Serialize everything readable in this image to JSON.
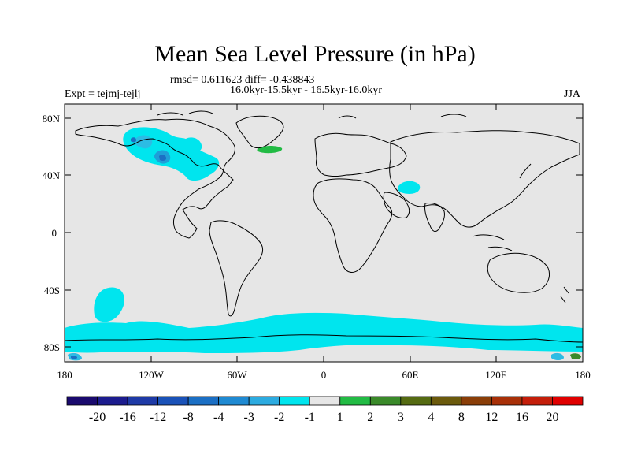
{
  "title": "Mean Sea Level Pressure (in hPa)",
  "stats": "rmsd= 0.611623 diff= -0.438843",
  "period": "16.0kyr-15.5kyr - 16.5kyr-16.0kyr",
  "experiment": "Expt = tejmj-tejlj",
  "season": "JJA",
  "colors": {
    "background": "#e6e6e6",
    "neg1": "#00e5ee",
    "neg2": "#2cbce4",
    "neg3": "#1f9fd8",
    "neg4": "#1b6fc4",
    "pos1": "#22bb44",
    "pos2": "#3a8a2a"
  },
  "map": {
    "lat_labels": [
      "80N",
      "40N",
      "0",
      "40S",
      "80S"
    ],
    "lon_labels": [
      "180",
      "120W",
      "60W",
      "0",
      "60E",
      "120E",
      "180"
    ]
  },
  "colorbar": {
    "labels": [
      "-20",
      "-16",
      "-12",
      "-8",
      "-4",
      "-3",
      "-2",
      "-1",
      "1",
      "2",
      "3",
      "4",
      "8",
      "12",
      "16",
      "20"
    ],
    "colors": [
      "#1a0a6e",
      "#1c1c8e",
      "#1e3aa6",
      "#1a52b8",
      "#1b6fc4",
      "#1f8ad2",
      "#2cabe0",
      "#00e5ee",
      "#e6e6e6",
      "#22bb44",
      "#3a8a2a",
      "#556b12",
      "#6b5a0c",
      "#8a3e08",
      "#a83008",
      "#c41e0a",
      "#e00000"
    ]
  }
}
